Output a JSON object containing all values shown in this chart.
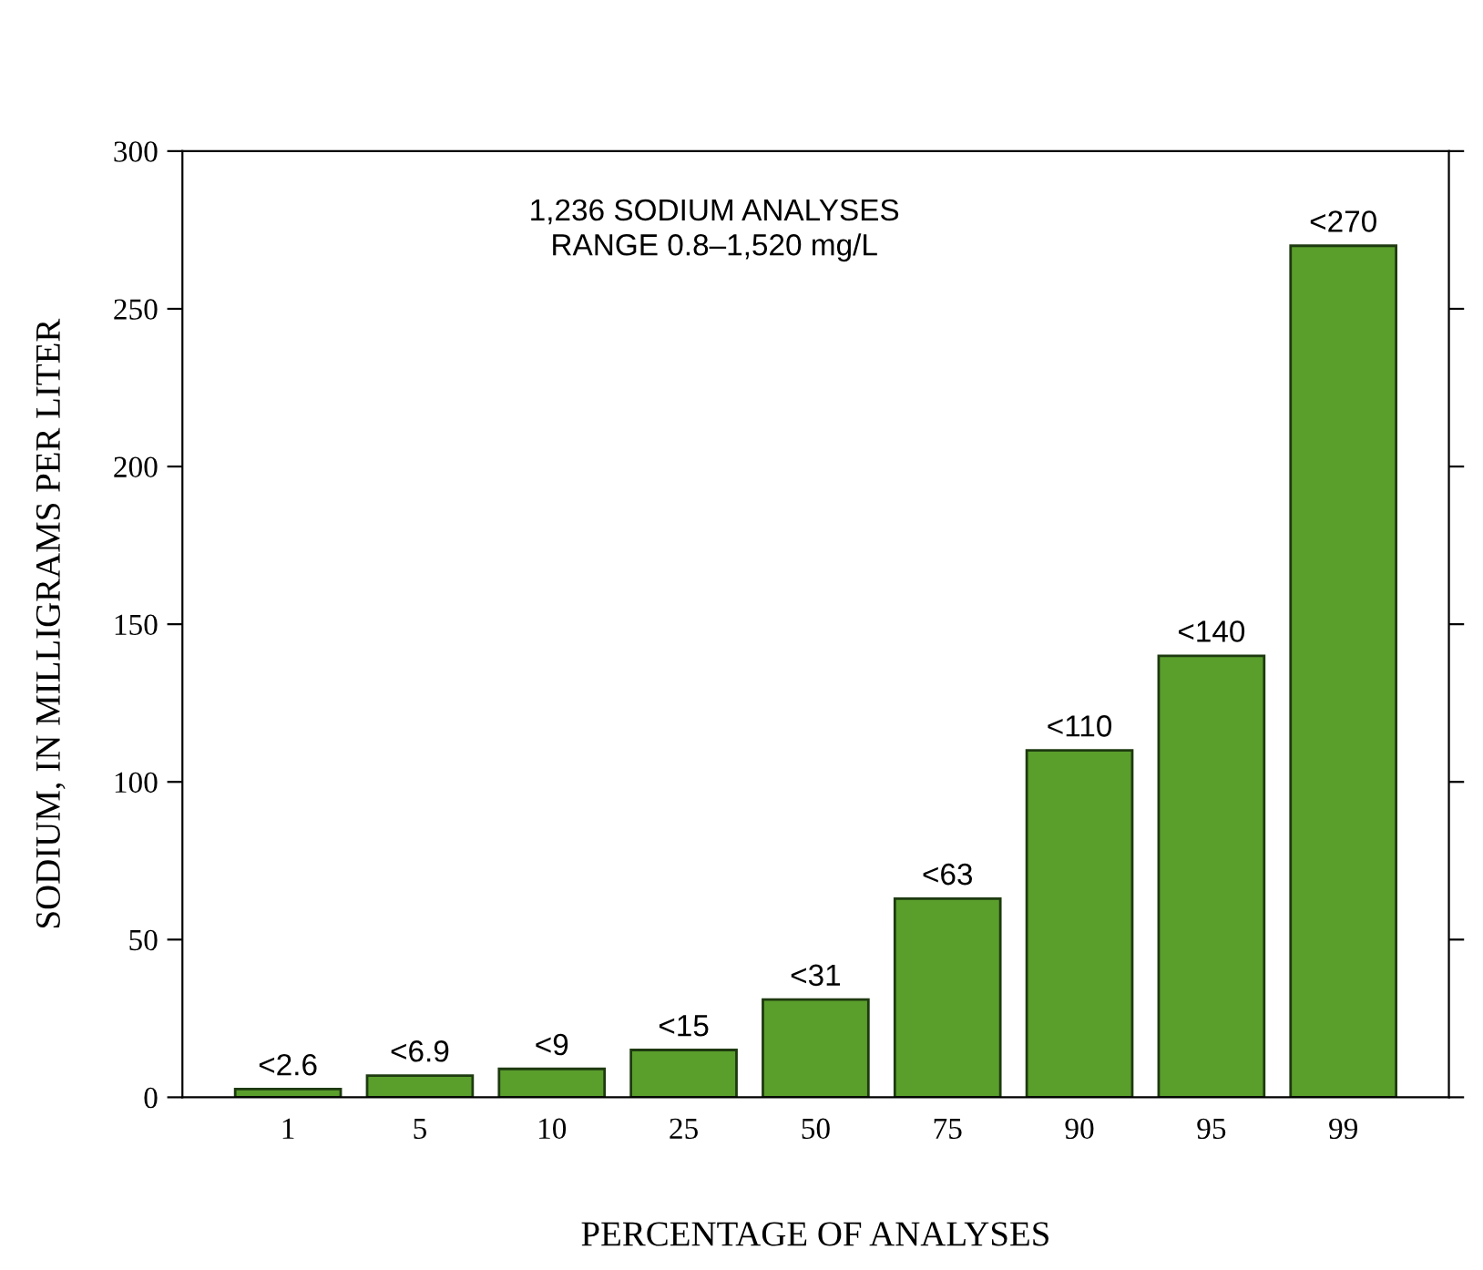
{
  "chart_data": {
    "type": "bar",
    "xlabel": "PERCENTAGE OF ANALYSES",
    "ylabel": "SODIUM, IN MILLIGRAMS PER LITER",
    "categories": [
      "1",
      "5",
      "10",
      "25",
      "50",
      "75",
      "90",
      "95",
      "99"
    ],
    "values": [
      2.6,
      6.9,
      9,
      15,
      31,
      63,
      110,
      140,
      270
    ],
    "value_labels": [
      "<2.6",
      "<6.9",
      "<9",
      "<15",
      "<31",
      "<63",
      "<110",
      "<140",
      "<270"
    ],
    "color": "#5a9e2c",
    "ylim": [
      0,
      300
    ],
    "yticks": [
      0,
      50,
      100,
      150,
      200,
      250,
      300
    ],
    "annotations": [
      "1,236 SODIUM ANALYSES\nRANGE 0.8–1,520 mg/L"
    ]
  }
}
